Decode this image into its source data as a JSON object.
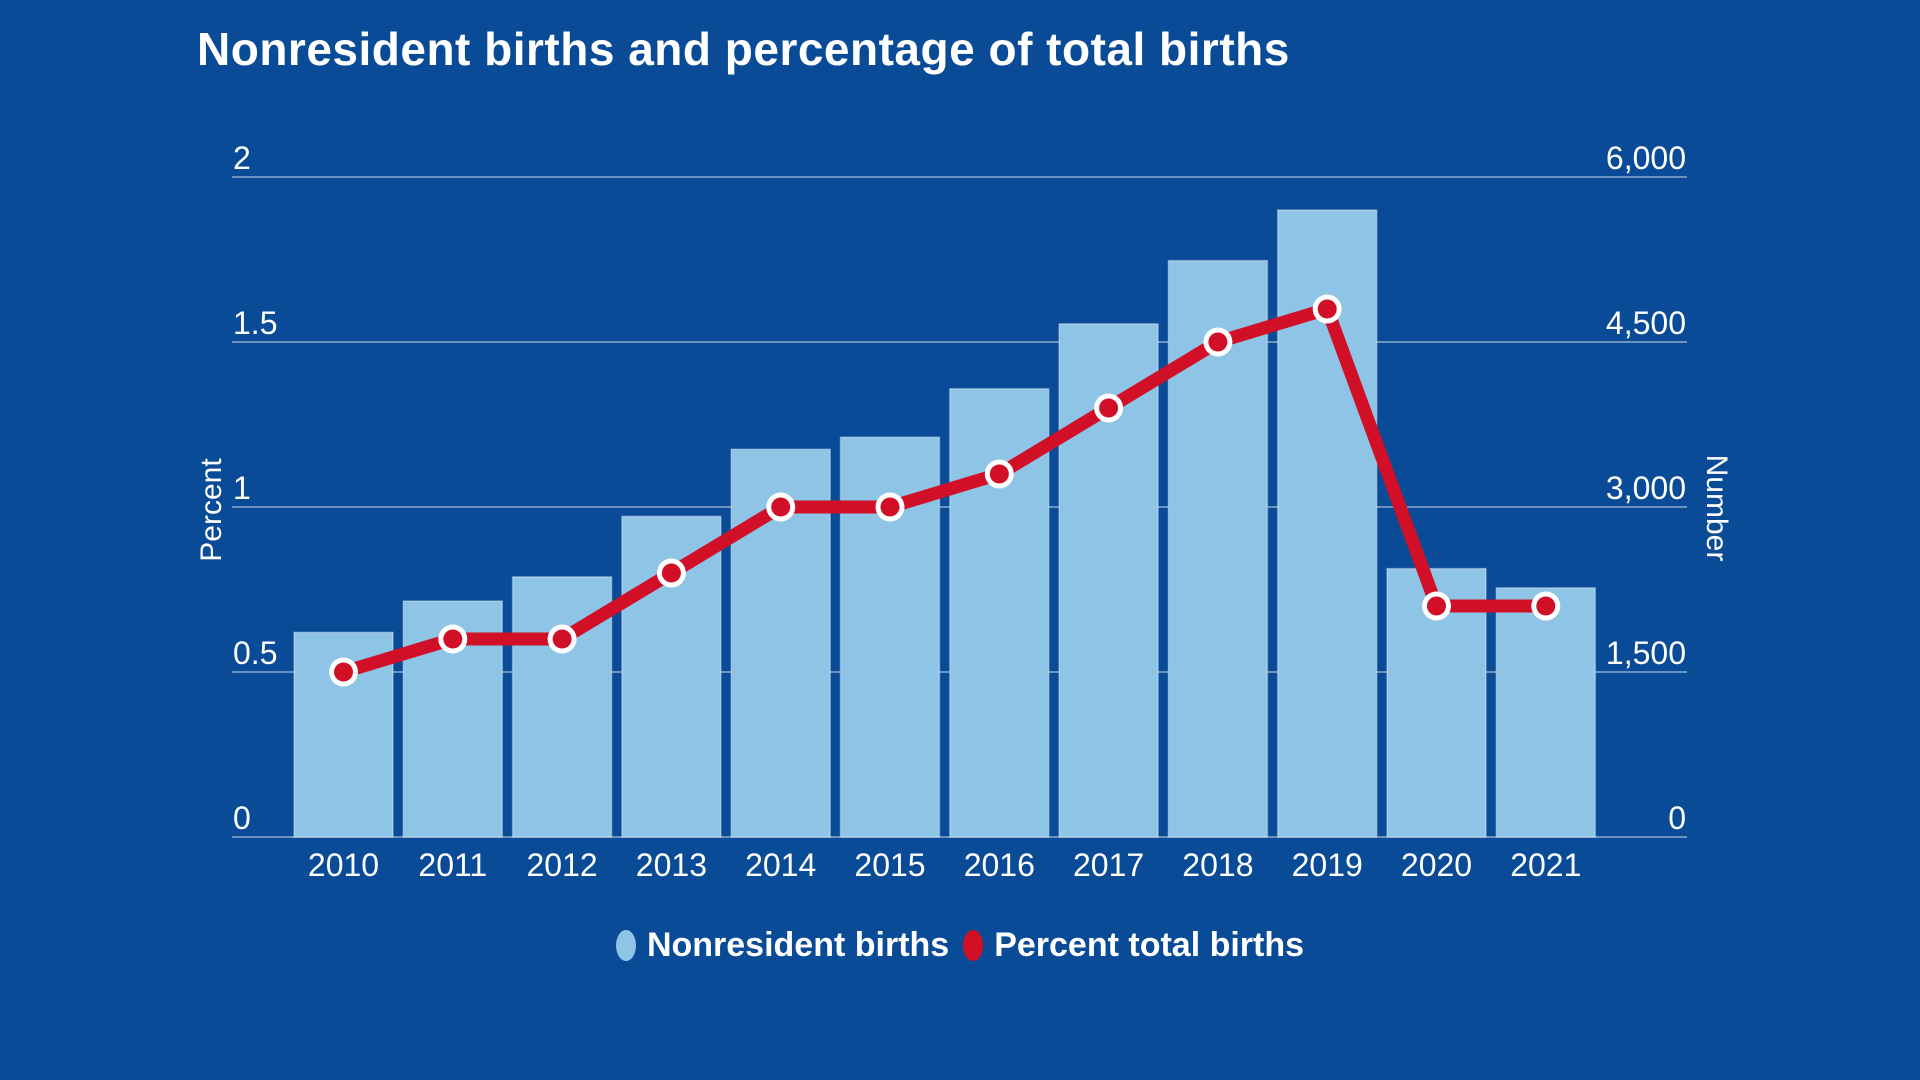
{
  "title": "Nonresident births and percentage of total births",
  "colors": {
    "background": "#0a4b97",
    "bar": "#8ec4e6",
    "bar_border": "rgba(255,255,255,0.35)",
    "line": "#d10f27",
    "marker_ring": "#ffffff",
    "gridline": "rgba(255,255,255,0.4)",
    "text": "#ffffff"
  },
  "left_axis_title": "Percent",
  "right_axis_title": "Number",
  "legend": {
    "items": [
      {
        "label": "Nonresident births",
        "color": "#8ec4e6"
      },
      {
        "label": "Percent total births",
        "color": "#d10f27"
      }
    ]
  },
  "chart_data": {
    "type": "bar+line combo",
    "title": "Nonresident births and percentage of total births",
    "categories": [
      "2010",
      "2011",
      "2012",
      "2013",
      "2014",
      "2015",
      "2016",
      "2017",
      "2018",
      "2019",
      "2020",
      "2021"
    ],
    "series": [
      {
        "name": "Nonresident births",
        "type": "bar",
        "axis": "right",
        "values": [
          1860,
          2145,
          2365,
          2915,
          3525,
          3635,
          4075,
          4665,
          5240,
          5700,
          2440,
          2265
        ]
      },
      {
        "name": "Percent total births",
        "type": "line",
        "axis": "left",
        "values": [
          0.5,
          0.6,
          0.6,
          0.8,
          1.0,
          1.0,
          1.1,
          1.3,
          1.5,
          1.6,
          0.7,
          0.7
        ]
      }
    ],
    "left_axis": {
      "label": "Percent",
      "range": [
        0,
        2
      ],
      "ticks": [
        0,
        0.5,
        1,
        1.5,
        2
      ],
      "tick_labels": [
        "0",
        "0.5",
        "1",
        "1.5",
        "2"
      ]
    },
    "right_axis": {
      "label": "Number",
      "range": [
        0,
        6000
      ],
      "ticks": [
        0,
        1500,
        3000,
        4500,
        6000
      ],
      "tick_labels": [
        "0",
        "1,500",
        "3,000",
        "4,500",
        "6,000"
      ]
    },
    "grid": true,
    "legend_position": "bottom"
  }
}
